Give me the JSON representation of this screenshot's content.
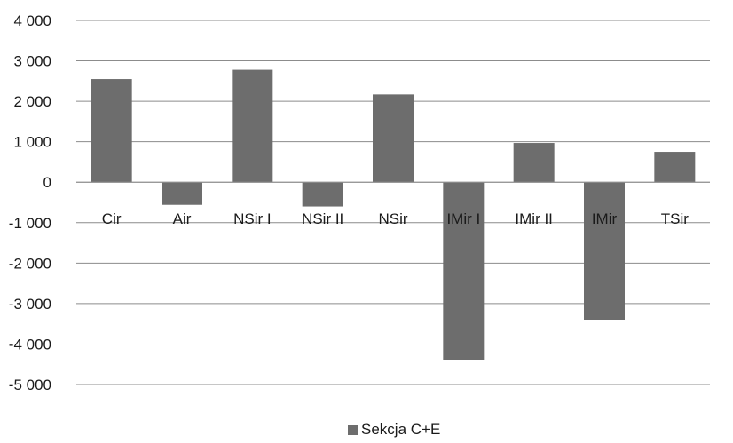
{
  "chart_data": {
    "type": "bar",
    "categories": [
      "Cir",
      "Air",
      "NSir I",
      "NSir II",
      "NSir",
      "IMir I",
      "IMir II",
      "IMir",
      "TSir"
    ],
    "series": [
      {
        "name": "Sekcja C+E",
        "values": [
          2550,
          -560,
          2780,
          -600,
          2170,
          -4400,
          970,
          -3400,
          750
        ]
      }
    ],
    "yticks": [
      {
        "value": 4000,
        "label": "4 000"
      },
      {
        "value": 3000,
        "label": "3 000"
      },
      {
        "value": 2000,
        "label": "2 000"
      },
      {
        "value": 1000,
        "label": "1 000"
      },
      {
        "value": 0,
        "label": "0"
      },
      {
        "value": -1000,
        "label": "-1 000"
      },
      {
        "value": -2000,
        "label": "-2 000"
      },
      {
        "value": -3000,
        "label": "-3 000"
      },
      {
        "value": -4000,
        "label": "-4 000"
      },
      {
        "value": -5000,
        "label": "-5 000"
      }
    ],
    "ylim": [
      -5000,
      4000
    ],
    "grid": true,
    "legend_position": "bottom",
    "colors": {
      "bar": "#6d6d6d",
      "grid": "#8c8c8c",
      "axis": "#8c8c8c"
    }
  }
}
